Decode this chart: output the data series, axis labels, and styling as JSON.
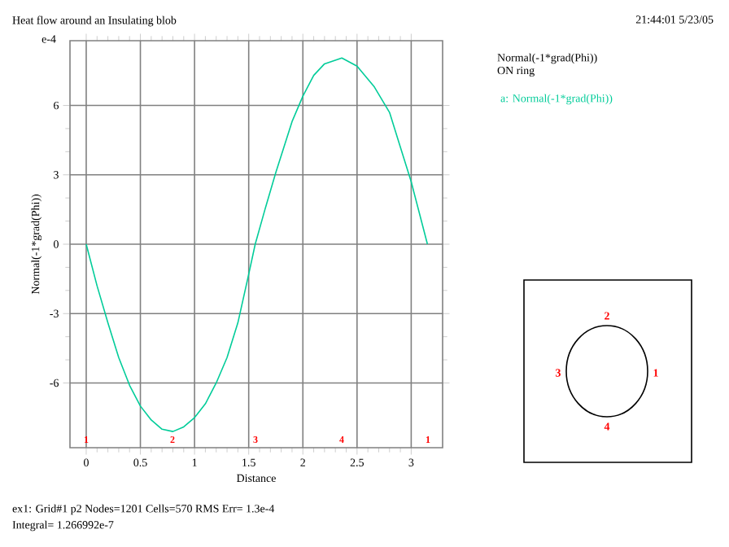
{
  "chart_data": {
    "type": "line",
    "title": "Heat flow around an Insulating blob",
    "subtitle": "21:44:01 5/23/05",
    "xlabel": "Distance",
    "ylabel": "Normal(-1*grad(Phi))",
    "x": [
      0,
      0.1,
      0.2,
      0.3,
      0.4,
      0.5,
      0.6,
      0.7,
      0.8,
      0.9,
      1.0,
      1.1,
      1.2,
      1.3,
      1.4,
      1.5,
      1.56,
      1.65,
      1.75,
      1.9,
      2.0,
      2.1,
      2.2,
      2.36,
      2.5,
      2.66,
      2.8,
      2.9,
      3.0,
      3.1,
      3.15
    ],
    "series": [
      {
        "name": "a: Normal(-1*grad(Phi))",
        "color": "#00cc99",
        "values": [
          0,
          -1.8,
          -3.4,
          -4.9,
          -6.1,
          -7.0,
          -7.6,
          -8.0,
          -8.1,
          -7.9,
          -7.5,
          -6.9,
          -6.0,
          -4.9,
          -3.4,
          -1.3,
          0,
          1.5,
          3.1,
          5.3,
          6.4,
          7.3,
          7.8,
          8.05,
          7.7,
          6.8,
          5.7,
          4.2,
          2.7,
          0.9,
          0
        ]
      }
    ],
    "xlim": [
      -0.15,
      3.29
    ],
    "ylim": [
      -8.8,
      8.8
    ],
    "xticks": [
      0,
      0.5,
      1,
      1.5,
      2,
      2.5,
      3
    ],
    "yticks": [
      -6,
      -3,
      0,
      3,
      6
    ],
    "grid": true,
    "legend": "right",
    "annotations": [
      "e-4",
      "Normal(-1*grad(Phi))",
      "ON ring",
      "ex1:  Grid#1  p2  Nodes=1201  Cells=570  RMS Err= 1.3e-4",
      "Integral=  1.266992e-7",
      "1",
      "2",
      "3",
      "4",
      "1",
      "2",
      "3",
      "4",
      "1"
    ]
  }
}
